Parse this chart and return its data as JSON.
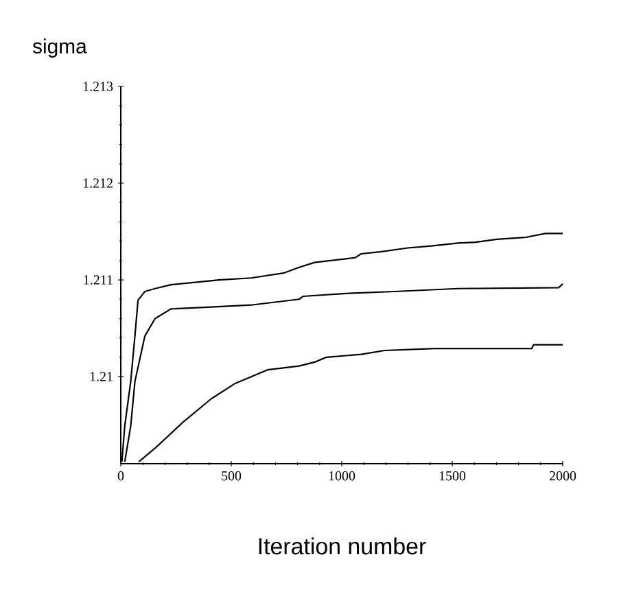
{
  "chart_data": {
    "type": "line",
    "ylabel": "sigma",
    "xlabel": "Iteration number",
    "xlim": [
      0,
      2000
    ],
    "xticks": [
      0,
      500,
      1000,
      1500,
      2000
    ],
    "ylim": [
      1.2091,
      1.213
    ],
    "yticks": [
      1.21,
      1.211,
      1.212,
      1.213
    ],
    "grid": false,
    "legend": false,
    "marker": "none",
    "line_style": "solid",
    "series": [
      {
        "color": "#000000",
        "x": [
          5,
          18,
          45,
          64,
          78,
          109,
          155,
          227,
          445,
          590,
          736,
          807,
          877,
          1061,
          1088,
          1175,
          1298,
          1404,
          1526,
          1605,
          1702,
          1833,
          1921,
          2000
        ],
        "values": [
          1.20912,
          1.20949,
          1.20995,
          1.21042,
          1.21079,
          1.21088,
          1.21091,
          1.21095,
          1.211,
          1.21102,
          1.21107,
          1.21113,
          1.21118,
          1.21123,
          1.21127,
          1.21129,
          1.21133,
          1.21135,
          1.21138,
          1.21139,
          1.21142,
          1.21144,
          1.21148,
          1.21148
        ]
      },
      {
        "color": "#000000",
        "x": [
          18,
          45,
          64,
          109,
          155,
          227,
          409,
          590,
          807,
          825,
          1018,
          1237,
          1526,
          1982,
          2000
        ],
        "values": [
          1.20912,
          1.20949,
          1.20995,
          1.21042,
          1.2106,
          1.2107,
          1.21072,
          1.21074,
          1.2108,
          1.21083,
          1.21086,
          1.21088,
          1.21091,
          1.21092,
          1.21096
        ]
      },
      {
        "color": "#000000",
        "x": [
          82,
          155,
          282,
          409,
          518,
          664,
          807,
          877,
          930,
          1088,
          1193,
          1421,
          1860,
          1868,
          2000
        ],
        "values": [
          1.20912,
          1.20926,
          1.20953,
          1.20977,
          1.20993,
          1.21007,
          1.21011,
          1.21015,
          1.2102,
          1.21023,
          1.21027,
          1.21029,
          1.21029,
          1.21033,
          1.21033
        ]
      }
    ]
  }
}
